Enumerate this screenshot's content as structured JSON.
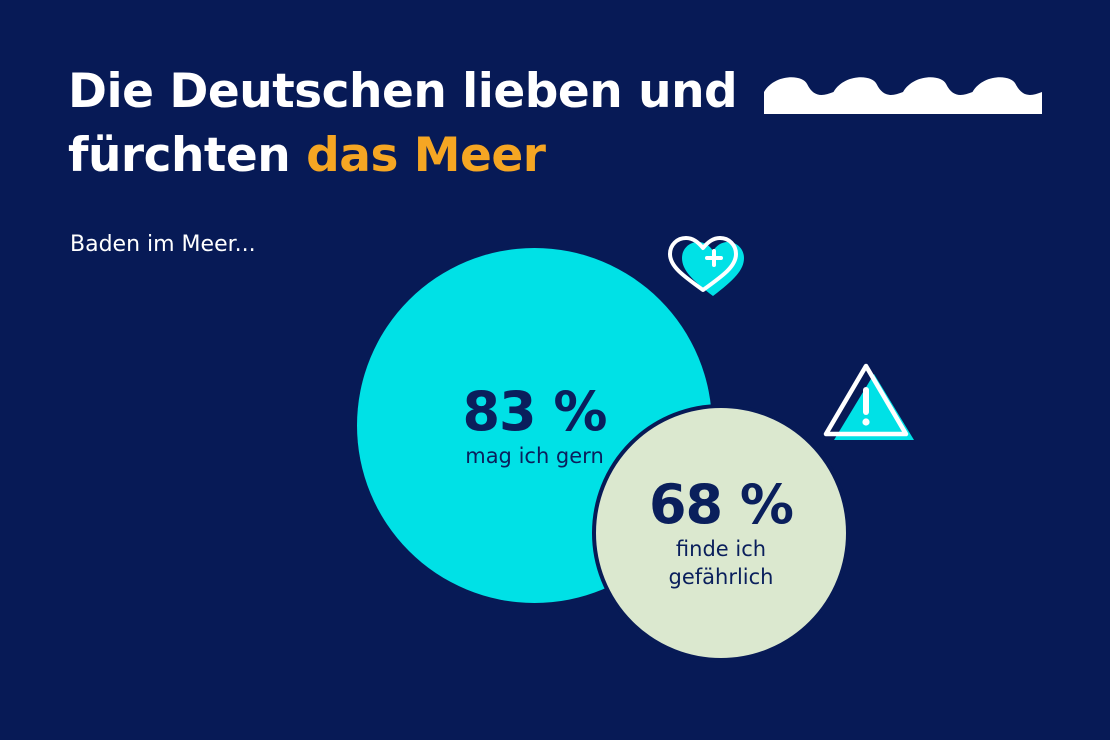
{
  "colors": {
    "background": "#071a56",
    "accent": "#f5a623",
    "text_light": "#ffffff",
    "text_dark": "#0a1f5c",
    "love": "#00e1e6",
    "fear": "#dbe8cf"
  },
  "title": {
    "line1": "Die Deutschen lieben und",
    "line2_plain": "fürchten ",
    "line2_accent": "das Meer"
  },
  "subtitle": "Baden im Meer...",
  "icons": {
    "waves": "waves-icon",
    "heart": "heart-plus-icon",
    "warning": "warning-triangle-icon"
  },
  "chart_data": {
    "type": "bubble",
    "title": "Die Deutschen lieben und fürchten das Meer",
    "subtitle": "Baden im Meer...",
    "items": [
      {
        "label": "mag ich gern",
        "value": 83,
        "display": "83 %",
        "color": "#00e1e6"
      },
      {
        "label_lines": [
          "finde ich",
          "gefährlich"
        ],
        "label": "finde ich gefährlich",
        "value": 68,
        "display": "68 %",
        "color": "#dbe8cf"
      }
    ]
  }
}
